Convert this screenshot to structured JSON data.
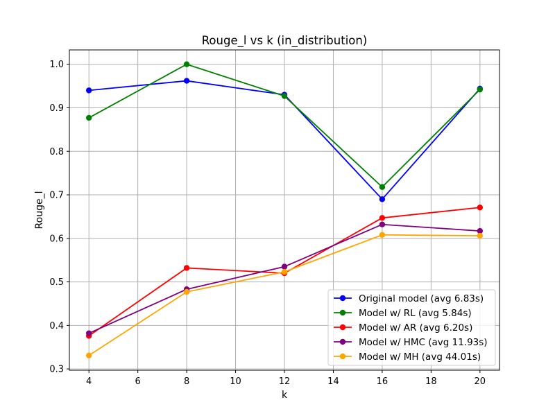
{
  "chart_data": {
    "type": "line",
    "title": "Rouge_l vs k (in_distribution)",
    "xlabel": "k",
    "ylabel": "Rouge_l",
    "x": [
      4,
      8,
      12,
      16,
      20
    ],
    "xlim": [
      3.2,
      20.8
    ],
    "ylim": [
      0.297,
      1.033
    ],
    "xticks": [
      "4",
      "6",
      "8",
      "10",
      "12",
      "14",
      "16",
      "18",
      "20"
    ],
    "yticks": [
      "0.3",
      "0.4",
      "0.5",
      "0.6",
      "0.7",
      "0.8",
      "0.9",
      "1.0"
    ],
    "grid": true,
    "legend_position": "lower-right",
    "series": [
      {
        "name": "Original model (avg 6.83s)",
        "color": "#0000ff",
        "values": [
          0.94,
          0.962,
          0.93,
          0.69,
          0.944
        ]
      },
      {
        "name": "Model w/ RL (avg 5.84s)",
        "color": "#008000",
        "values": [
          0.877,
          1.0,
          0.927,
          0.718,
          0.942
        ]
      },
      {
        "name": "Model w/ AR (avg 6.20s)",
        "color": "#ff0000",
        "values": [
          0.376,
          0.532,
          0.52,
          0.647,
          0.671
        ]
      },
      {
        "name": "Model w/ HMC (avg 11.93s)",
        "color": "#800080",
        "values": [
          0.382,
          0.483,
          0.535,
          0.632,
          0.617
        ]
      },
      {
        "name": "Model w/ MH (avg 44.01s)",
        "color": "#ffa500",
        "values": [
          0.331,
          0.477,
          0.523,
          0.608,
          0.606
        ]
      }
    ]
  }
}
